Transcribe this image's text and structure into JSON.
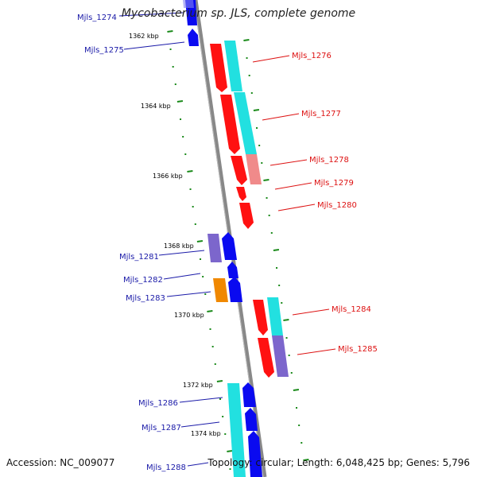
{
  "title": "Mycobacterium sp. JLS, complete genome",
  "footer": {
    "accession": "Accession: NC_009077",
    "summary": "Topology: circular; Length: 6,048,425 bp; Genes: 5,796"
  },
  "colors": {
    "forward_label": "#1a1aa8",
    "reverse_label": "#dd1111",
    "red": "#ff1111",
    "cyan": "#22e0e0",
    "blue": "#0a0af0",
    "purple": "#7c66cc",
    "orange": "#f08800",
    "pink": "#f08a8a",
    "backbone": "#888888",
    "tick": "#1a8a1a"
  },
  "scale_labels": [
    "1362 kbp",
    "1364 kbp",
    "1366 kbp",
    "1368 kbp",
    "1370 kbp",
    "1372 kbp",
    "1374 kbp"
  ],
  "genes": [
    {
      "id": "Mjls_1274",
      "strand": "forward"
    },
    {
      "id": "Mjls_1275",
      "strand": "forward"
    },
    {
      "id": "Mjls_1276",
      "strand": "reverse"
    },
    {
      "id": "Mjls_1277",
      "strand": "reverse"
    },
    {
      "id": "Mjls_1278",
      "strand": "reverse"
    },
    {
      "id": "Mjls_1279",
      "strand": "reverse"
    },
    {
      "id": "Mjls_1280",
      "strand": "reverse"
    },
    {
      "id": "Mjls_1281",
      "strand": "forward"
    },
    {
      "id": "Mjls_1282",
      "strand": "forward"
    },
    {
      "id": "Mjls_1283",
      "strand": "forward"
    },
    {
      "id": "Mjls_1284",
      "strand": "reverse"
    },
    {
      "id": "Mjls_1285",
      "strand": "reverse"
    },
    {
      "id": "Mjls_1286",
      "strand": "forward"
    },
    {
      "id": "Mjls_1287",
      "strand": "forward"
    },
    {
      "id": "Mjls_1288",
      "strand": "forward"
    }
  ]
}
